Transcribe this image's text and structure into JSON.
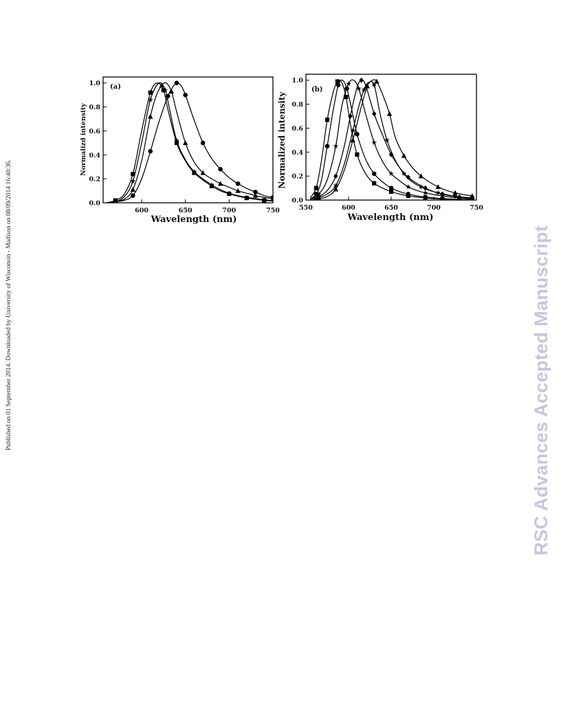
{
  "side_note": "Published on 01 September 2014. Downloaded by University of Wisconsin - Madison on 08/09/2014 16:40:36.",
  "watermark": "RSC Advances Accepted Manuscript",
  "chart_data": [
    {
      "type": "line",
      "panel_label": "(a)",
      "xlabel": "Wavelength (nm)",
      "ylabel": "Normalizd intensity",
      "xlim": [
        556,
        750
      ],
      "ylim": [
        0,
        1.05
      ],
      "x_ticks": [
        600,
        650,
        700,
        750
      ],
      "x_tick_labels": [
        "600",
        "650",
        "700",
        "750"
      ],
      "y_ticks": [
        0.0,
        0.2,
        0.4,
        0.6,
        0.8,
        1.0
      ],
      "y_tick_labels": [
        "0.0",
        "0.2",
        "0.4",
        "0.6",
        "0.8",
        "1.0"
      ],
      "grid": false,
      "series": [
        {
          "marker": "square",
          "x": [
            560,
            570,
            580,
            590,
            600,
            610,
            618,
            625,
            630,
            640,
            650,
            660,
            670,
            680,
            690,
            700,
            710,
            720,
            730,
            740,
            750
          ],
          "y": [
            0.0,
            0.02,
            0.07,
            0.24,
            0.6,
            0.92,
            1.0,
            0.94,
            0.78,
            0.5,
            0.35,
            0.25,
            0.19,
            0.14,
            0.1,
            0.075,
            0.055,
            0.04,
            0.03,
            0.02,
            0.015
          ]
        },
        {
          "marker": "star",
          "x": [
            560,
            570,
            580,
            590,
            600,
            610,
            620,
            627,
            632,
            640,
            650,
            660,
            670,
            680,
            690,
            700,
            710,
            720,
            730,
            740,
            750
          ],
          "y": [
            0.0,
            0.01,
            0.05,
            0.18,
            0.5,
            0.86,
            1.0,
            0.94,
            0.78,
            0.52,
            0.36,
            0.26,
            0.2,
            0.15,
            0.11,
            0.08,
            0.06,
            0.045,
            0.035,
            0.025,
            0.018
          ]
        },
        {
          "marker": "triangle",
          "x": [
            560,
            570,
            580,
            590,
            600,
            610,
            617,
            623,
            628,
            634,
            640,
            650,
            660,
            670,
            680,
            690,
            700,
            710,
            720,
            730,
            740,
            750
          ],
          "y": [
            0.0,
            0.01,
            0.03,
            0.11,
            0.35,
            0.72,
            0.9,
            0.98,
            1.0,
            0.93,
            0.76,
            0.5,
            0.34,
            0.25,
            0.2,
            0.16,
            0.13,
            0.1,
            0.08,
            0.06,
            0.045,
            0.035
          ]
        },
        {
          "marker": "circle",
          "x": [
            560,
            570,
            580,
            590,
            600,
            610,
            620,
            630,
            635,
            640,
            645,
            650,
            660,
            670,
            680,
            690,
            700,
            710,
            720,
            730,
            740,
            750
          ],
          "y": [
            0.0,
            0.01,
            0.02,
            0.06,
            0.2,
            0.43,
            0.68,
            0.89,
            0.96,
            1.0,
            0.98,
            0.9,
            0.69,
            0.5,
            0.37,
            0.28,
            0.21,
            0.16,
            0.12,
            0.09,
            0.06,
            0.045
          ]
        }
      ]
    },
    {
      "type": "line",
      "panel_label": "(b)",
      "xlabel": "Wavelength (nm)",
      "ylabel": "Normalized intensity",
      "xlim": [
        550,
        750
      ],
      "ylim": [
        0,
        1.05
      ],
      "x_ticks": [
        550,
        600,
        650,
        700,
        750
      ],
      "x_tick_labels": [
        "550",
        "600",
        "650",
        "700",
        "750"
      ],
      "y_ticks": [
        0.0,
        0.2,
        0.4,
        0.6,
        0.8,
        1.0
      ],
      "y_tick_labels": [
        "0.0",
        "0.2",
        "0.4",
        "0.6",
        "0.8",
        "1.0"
      ],
      "grid": false,
      "series": [
        {
          "marker": "square",
          "x": [
            555,
            562,
            568,
            575,
            582,
            587,
            592,
            597,
            603,
            610,
            620,
            630,
            640,
            650,
            660,
            670,
            680,
            690,
            700,
            710,
            720,
            730,
            740,
            745
          ],
          "y": [
            0.02,
            0.1,
            0.32,
            0.67,
            0.9,
            0.99,
            0.98,
            0.86,
            0.6,
            0.38,
            0.22,
            0.14,
            0.1,
            0.07,
            0.05,
            0.035,
            0.025,
            0.018,
            0.012,
            0.008,
            0.006,
            0.004,
            0.003,
            0.002
          ]
        },
        {
          "marker": "circle",
          "x": [
            555,
            562,
            568,
            575,
            582,
            588,
            593,
            598,
            603,
            610,
            620,
            630,
            640,
            650,
            660,
            670,
            680,
            690,
            700,
            710,
            720,
            730,
            740,
            745
          ],
          "y": [
            0.01,
            0.05,
            0.16,
            0.45,
            0.75,
            0.96,
            1.0,
            0.93,
            0.78,
            0.55,
            0.34,
            0.22,
            0.15,
            0.1,
            0.07,
            0.05,
            0.035,
            0.025,
            0.018,
            0.012,
            0.009,
            0.006,
            0.004,
            0.003
          ]
        },
        {
          "marker": "star",
          "x": [
            555,
            565,
            575,
            585,
            592,
            600,
            606,
            612,
            620,
            630,
            640,
            650,
            660,
            670,
            680,
            690,
            700,
            710,
            720,
            730,
            740,
            745
          ],
          "y": [
            0.01,
            0.05,
            0.17,
            0.45,
            0.78,
            0.97,
            1.0,
            0.93,
            0.72,
            0.48,
            0.32,
            0.22,
            0.16,
            0.11,
            0.08,
            0.06,
            0.045,
            0.035,
            0.025,
            0.018,
            0.012,
            0.01
          ]
        },
        {
          "marker": "diamond",
          "x": [
            555,
            565,
            575,
            585,
            595,
            602,
            610,
            615,
            620,
            630,
            640,
            650,
            660,
            670,
            680,
            690,
            700,
            710,
            720,
            730,
            740,
            745
          ],
          "y": [
            0.01,
            0.03,
            0.08,
            0.2,
            0.45,
            0.7,
            0.94,
            1.0,
            0.96,
            0.72,
            0.54,
            0.38,
            0.27,
            0.19,
            0.14,
            0.1,
            0.07,
            0.05,
            0.035,
            0.025,
            0.018,
            0.014
          ]
        },
        {
          "marker": "six-point-star",
          "x": [
            555,
            565,
            575,
            585,
            595,
            605,
            612,
            618,
            623,
            630,
            637,
            645,
            655,
            665,
            675,
            685,
            695,
            705,
            715,
            725,
            735,
            745
          ],
          "y": [
            0.01,
            0.02,
            0.05,
            0.12,
            0.3,
            0.58,
            0.78,
            0.92,
            0.98,
            0.96,
            0.72,
            0.5,
            0.33,
            0.22,
            0.15,
            0.11,
            0.08,
            0.06,
            0.045,
            0.032,
            0.024,
            0.018
          ]
        },
        {
          "marker": "triangle",
          "x": [
            555,
            565,
            575,
            585,
            595,
            605,
            615,
            622,
            628,
            633,
            640,
            648,
            655,
            665,
            675,
            685,
            695,
            705,
            715,
            725,
            735,
            745
          ],
          "y": [
            0.0,
            0.01,
            0.03,
            0.09,
            0.25,
            0.5,
            0.78,
            0.95,
            1.0,
            0.99,
            0.88,
            0.72,
            0.52,
            0.37,
            0.27,
            0.2,
            0.15,
            0.11,
            0.08,
            0.06,
            0.045,
            0.035
          ]
        }
      ]
    }
  ]
}
